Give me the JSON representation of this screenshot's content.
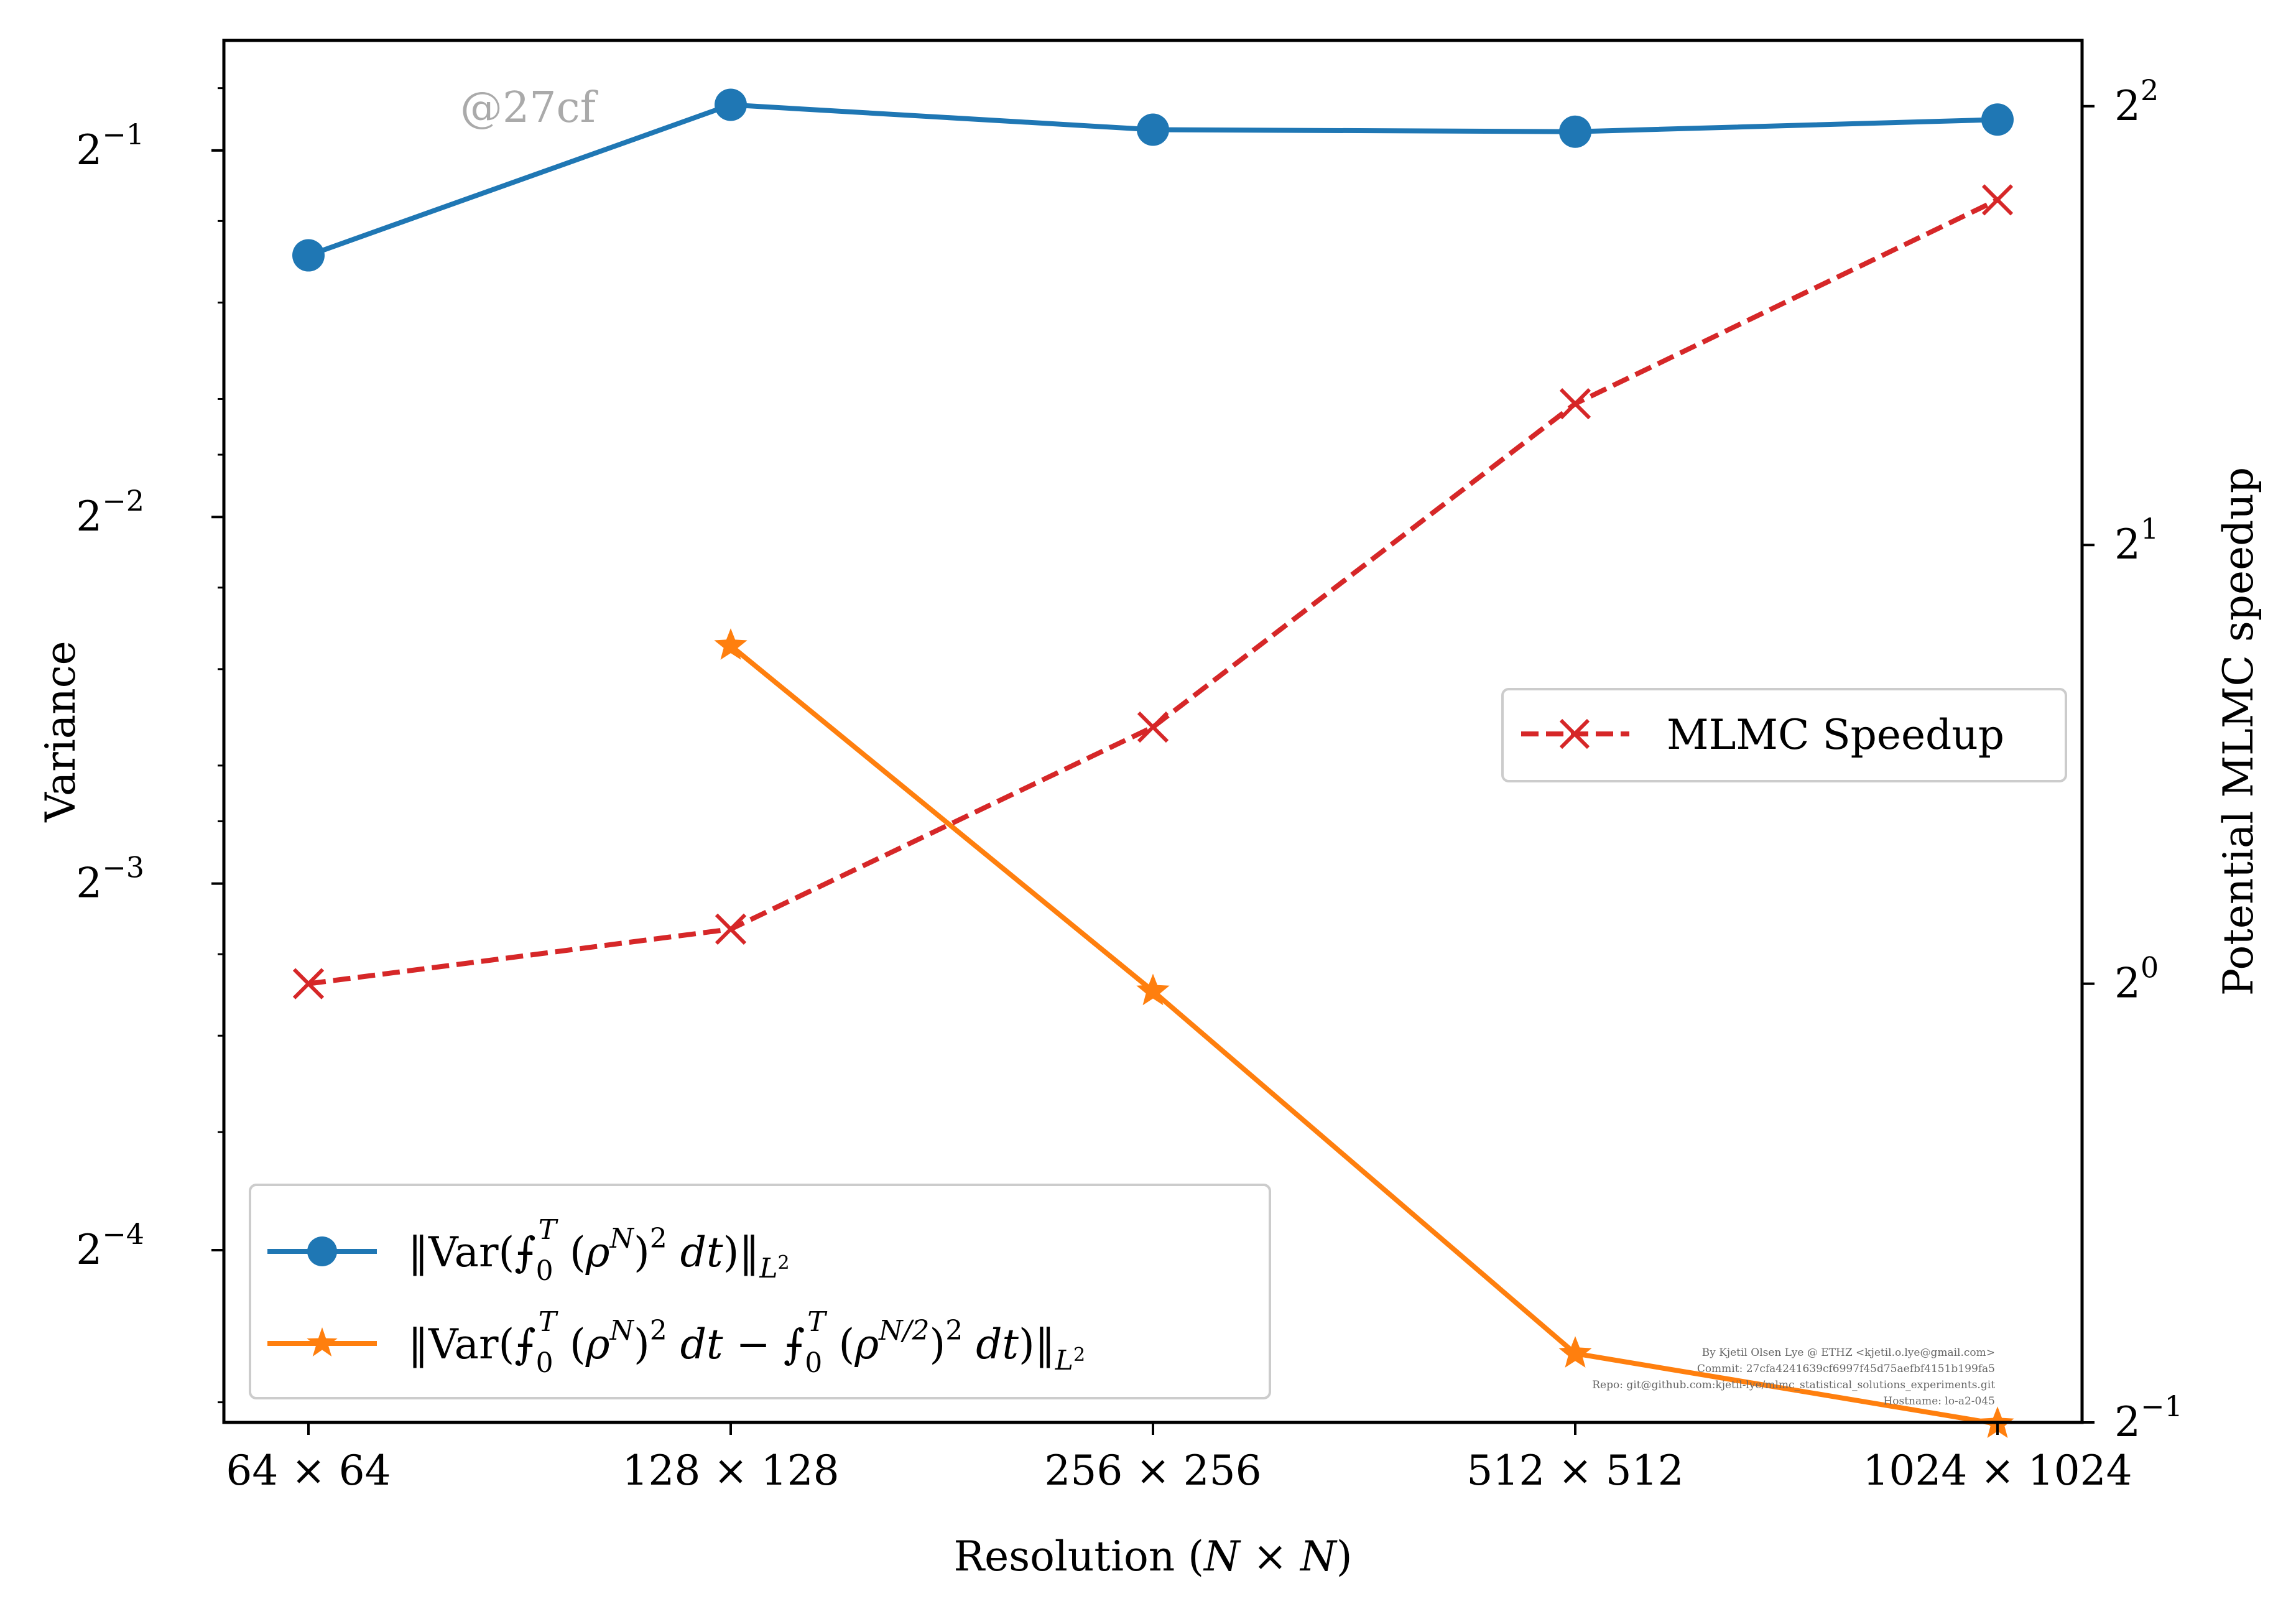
{
  "chart_data": {
    "type": "line",
    "categories": [
      "64 × 64",
      "128 × 128",
      "256 × 256",
      "512 × 512",
      "1024 × 1024"
    ],
    "xlabel": "Resolution (N × N)",
    "ylabel_left": "Variance",
    "ylabel_right": "Potential MLMC speedup",
    "left_axis": {
      "scale": "log2",
      "log2_range": [
        -4.47,
        -0.7
      ],
      "ticks": [
        {
          "exp": -1,
          "base": "2",
          "sup": "−1"
        },
        {
          "exp": -2,
          "base": "2",
          "sup": "−2"
        },
        {
          "exp": -3,
          "base": "2",
          "sup": "−3"
        },
        {
          "exp": -4,
          "base": "2",
          "sup": "−4"
        }
      ]
    },
    "right_axis": {
      "scale": "log2",
      "log2_range": [
        -1,
        2.15
      ],
      "ticks": [
        {
          "exp": 2,
          "base": "2",
          "sup": "2"
        },
        {
          "exp": 1,
          "base": "2",
          "sup": "1"
        },
        {
          "exp": 0,
          "base": "2",
          "sup": "0"
        },
        {
          "exp": -1,
          "base": "2",
          "sup": "−1"
        }
      ]
    },
    "series": [
      {
        "name": "‖Var(⨍₀ᵀ (ρᴺ)² dt)‖_L²",
        "axis": "left",
        "color": "#1f77b4",
        "marker": "circle",
        "linestyle": "solid",
        "values": [
          0.41,
          0.545,
          0.52,
          0.518,
          0.53
        ]
      },
      {
        "name": "‖Var(⨍₀ᵀ (ρᴺ)² dt − ⨍₀ᵀ (ρᴺᐟ²)² dt)‖_L²",
        "axis": "left",
        "color": "#ff7f0e",
        "marker": "star",
        "linestyle": "solid",
        "values": [
          null,
          0.196,
          0.102,
          0.0514,
          0.045
        ]
      },
      {
        "name": "MLMC Speedup",
        "axis": "right",
        "color": "#d62728",
        "marker": "x",
        "linestyle": "dashed",
        "values": [
          1.0,
          1.09,
          1.5,
          2.5,
          3.45
        ]
      }
    ],
    "legend_left": {
      "placement": "lower-left",
      "entries": [
        {
          "main": "‖Var(⨍",
          "sub": "0",
          "sup": "T",
          "rest": " (ρ",
          "sup2": "N",
          "rest2": ")² dt)‖",
          "tail_sub": "L²"
        },
        {
          "main": "‖Var(⨍",
          "sub": "0",
          "sup": "T",
          "rest": " (ρ",
          "sup2": "N",
          "rest2": ")² dt − ⨍",
          "sub3": "0",
          "sup3": "T",
          "rest3": " (ρ",
          "sup4": "N/2",
          "rest4": ")² dt)‖",
          "tail_sub": "L²"
        }
      ]
    },
    "legend_right": {
      "placement": "center-right",
      "entries": [
        "MLMC Speedup"
      ]
    },
    "watermark": "@27cf",
    "credits": [
      "By Kjetil Olsen Lye @ ETHZ <kjetil.o.lye@gmail.com>",
      "Commit: 27cfa4241639cf6997f45d75aefbf4151b199fa5",
      "Repo: git@github.com:kjetil-lye/mlmc_statistical_solutions_experiments.git",
      "Hostname: lo-a2-045"
    ]
  }
}
